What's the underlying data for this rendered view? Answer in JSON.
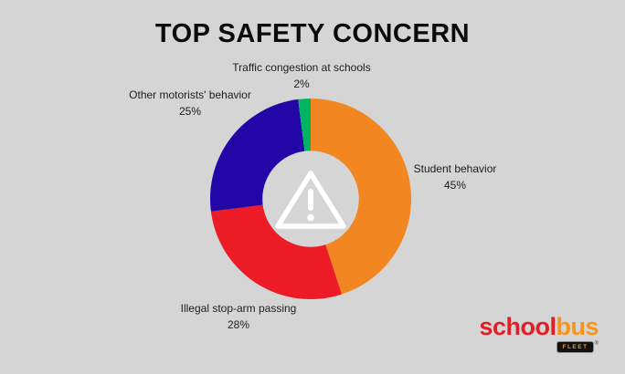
{
  "page": {
    "title": "TOP SAFETY CONCERN",
    "background": "#D5D5D5"
  },
  "chart_data": {
    "type": "pie",
    "donut": true,
    "title": "TOP SAFETY CONCERN",
    "start_angle_deg": 0,
    "direction": "clockwise",
    "inner_radius_ratio": 0.48,
    "hole_color": "#D5D5D5",
    "legend_position": "around-slices",
    "center_icon": "warning-triangle-icon",
    "slices": [
      {
        "label": "Student behavior",
        "value": 45,
        "pct_label": "45%",
        "color": "#F28620"
      },
      {
        "label": "Illegal stop-arm passing",
        "value": 28,
        "pct_label": "28%",
        "color": "#EC1B26"
      },
      {
        "label": "Other motorists' behavior",
        "value": 25,
        "pct_label": "25%",
        "color": "#2306A8"
      },
      {
        "label": "Traffic congestion at schools",
        "value": 2,
        "pct_label": "2%",
        "color": "#00B55F"
      }
    ]
  },
  "logo": {
    "school": "school",
    "bus": "bus",
    "badge": "FLEET",
    "reg": "®",
    "colors": {
      "school": "#E31E25",
      "bus": "#F7941D",
      "badge_bg": "#111111",
      "badge_text": "#F7941D"
    }
  }
}
